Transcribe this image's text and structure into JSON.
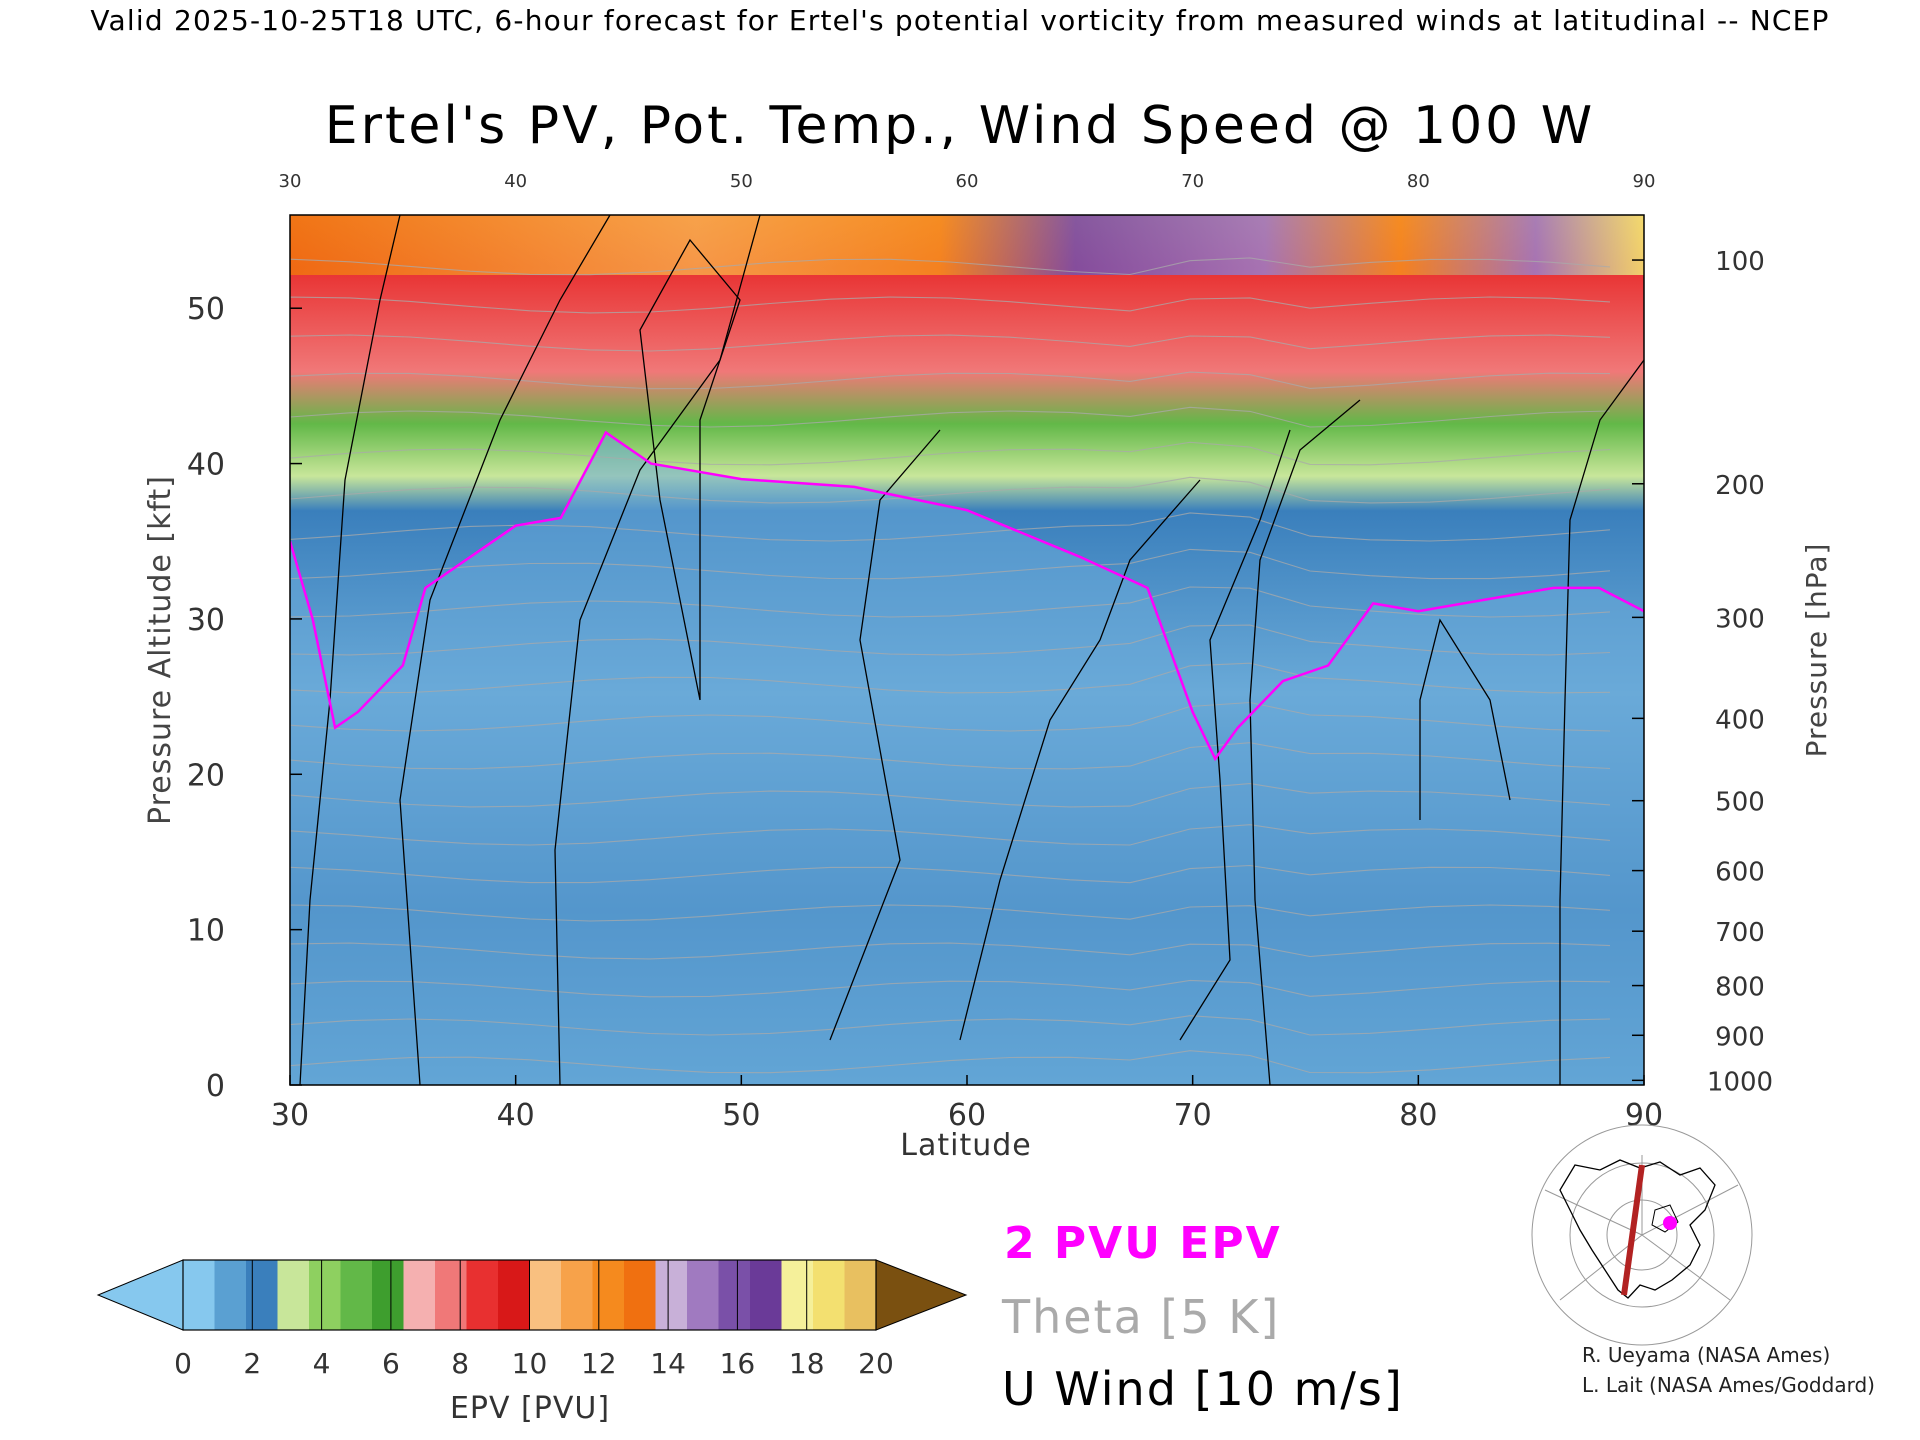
{
  "header": {
    "top_text": "Valid 2025-10-25T18 UTC, 6-hour forecast for Ertel's potential vorticity from measured winds at latitudinal -- NCEP"
  },
  "chart_data": {
    "type": "heatmap",
    "title": "Ertel's PV, Pot. Temp., Wind Speed @ 100 W",
    "xlabel": "Latitude",
    "ylabel_left": "Pressure Altitude [kft]",
    "ylabel_right": "Pressure [hPa]",
    "xlim": [
      30,
      90
    ],
    "ylim": [
      0,
      56
    ],
    "x_ticks": [
      30,
      40,
      50,
      60,
      70,
      80,
      90
    ],
    "x_ticks_top": [
      30,
      40,
      50,
      60,
      70,
      80,
      90
    ],
    "y_ticks": [
      0,
      10,
      20,
      30,
      40,
      50
    ],
    "pressure_ticks": [
      {
        "label": "100",
        "kft": 53.1
      },
      {
        "label": "200",
        "kft": 38.7
      },
      {
        "label": "300",
        "kft": 30.1
      },
      {
        "label": "400",
        "kft": 23.6
      },
      {
        "label": "500",
        "kft": 18.3
      },
      {
        "label": "600",
        "kft": 13.8
      },
      {
        "label": "700",
        "kft": 9.9
      },
      {
        "label": "800",
        "kft": 6.4
      },
      {
        "label": "900",
        "kft": 3.2
      },
      {
        "label": "1000",
        "kft": 0.3
      }
    ],
    "tropopause_2pvu_kft": [
      {
        "lat": 30,
        "kft": 35
      },
      {
        "lat": 31,
        "kft": 30
      },
      {
        "lat": 32,
        "kft": 23
      },
      {
        "lat": 33,
        "kft": 24
      },
      {
        "lat": 35,
        "kft": 27
      },
      {
        "lat": 36,
        "kft": 32
      },
      {
        "lat": 38,
        "kft": 34
      },
      {
        "lat": 40,
        "kft": 36
      },
      {
        "lat": 42,
        "kft": 36.5
      },
      {
        "lat": 44,
        "kft": 42
      },
      {
        "lat": 46,
        "kft": 40
      },
      {
        "lat": 48,
        "kft": 39.5
      },
      {
        "lat": 50,
        "kft": 39
      },
      {
        "lat": 55,
        "kft": 38.5
      },
      {
        "lat": 60,
        "kft": 37
      },
      {
        "lat": 65,
        "kft": 34
      },
      {
        "lat": 68,
        "kft": 32
      },
      {
        "lat": 70,
        "kft": 24
      },
      {
        "lat": 71,
        "kft": 21
      },
      {
        "lat": 72,
        "kft": 23
      },
      {
        "lat": 74,
        "kft": 26
      },
      {
        "lat": 76,
        "kft": 27
      },
      {
        "lat": 78,
        "kft": 31
      },
      {
        "lat": 80,
        "kft": 30.5
      },
      {
        "lat": 82,
        "kft": 31
      },
      {
        "lat": 84,
        "kft": 31.5
      },
      {
        "lat": 86,
        "kft": 32
      },
      {
        "lat": 88,
        "kft": 32
      },
      {
        "lat": 90,
        "kft": 30.5
      }
    ],
    "colorbar": {
      "label": "EPV [PVU]",
      "ticks": [
        0,
        2,
        4,
        6,
        8,
        10,
        12,
        14,
        16,
        18,
        20
      ],
      "colors": [
        "#86c8ee",
        "#5aa0d2",
        "#3a7fbc",
        "#c8e69a",
        "#8ed060",
        "#62b848",
        "#3e9e2e",
        "#f5b0b0",
        "#f07878",
        "#e83030",
        "#d81818",
        "#f9c080",
        "#f7a24a",
        "#f58a1e",
        "#f07010",
        "#c8b0d8",
        "#a07ac0",
        "#7a50a8",
        "#6a3a98",
        "#f5f09a",
        "#f3e070",
        "#e8c060"
      ],
      "under_color": "#86c8ee",
      "over_color": "#7a5010"
    },
    "legend": [
      {
        "label": "2 PVU EPV",
        "color": "#ff00ff"
      },
      {
        "label": "Theta [5 K]",
        "color": "#aaaaaa"
      },
      {
        "label": "U Wind [10 m/s]",
        "color": "#000000"
      }
    ]
  },
  "map_inset": {
    "cross_section_color": "#b22222",
    "marker_color": "#ff00ff"
  },
  "credits": {
    "line1": "R. Ueyama (NASA Ames)",
    "line2": "L. Lait (NASA Ames/Goddard)"
  }
}
